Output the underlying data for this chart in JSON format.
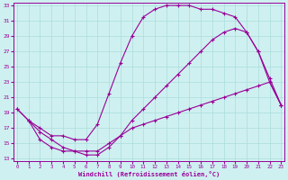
{
  "xlabel": "Windchill (Refroidissement éolien,°C)",
  "background_color": "#cff0f0",
  "line_color": "#990099",
  "grid_color": "#aadddd",
  "xlim": [
    0,
    23
  ],
  "ylim": [
    13,
    33
  ],
  "xticks": [
    0,
    1,
    2,
    3,
    4,
    5,
    6,
    7,
    8,
    9,
    10,
    11,
    12,
    13,
    14,
    15,
    16,
    17,
    18,
    19,
    20,
    21,
    22,
    23
  ],
  "yticks": [
    13,
    15,
    17,
    19,
    21,
    23,
    25,
    27,
    29,
    31,
    33
  ],
  "curve1_x": [
    0,
    1,
    2,
    3,
    4,
    5,
    6,
    7,
    8,
    9,
    10,
    11,
    12,
    13,
    14,
    15,
    16,
    17,
    18,
    19,
    20,
    21,
    22,
    23
  ],
  "curve1_y": [
    19.5,
    18.0,
    16.5,
    15.5,
    14.5,
    14.0,
    13.5,
    13.5,
    14.5,
    16.0,
    18.0,
    19.5,
    21.0,
    22.5,
    24.0,
    25.5,
    27.0,
    28.5,
    29.5,
    30.0,
    29.5,
    27.0,
    23.5,
    20.0
  ],
  "curve2_x": [
    0,
    1,
    2,
    3,
    4,
    5,
    6,
    7,
    8,
    9,
    10,
    11,
    12,
    13,
    14,
    15,
    16,
    17,
    18,
    19,
    20,
    21,
    22,
    23
  ],
  "curve2_y": [
    19.5,
    18.0,
    17.0,
    16.0,
    16.0,
    15.5,
    15.5,
    17.5,
    21.5,
    25.5,
    29.0,
    31.5,
    32.5,
    33.0,
    33.0,
    33.0,
    32.5,
    32.5,
    32.0,
    31.5,
    29.5,
    27.0,
    23.0,
    20.0
  ],
  "curve3_x": [
    1,
    2,
    3,
    4,
    5,
    6,
    7,
    8,
    9,
    10,
    11,
    12,
    13,
    14,
    15,
    16,
    17,
    18,
    19,
    20,
    21,
    22,
    23
  ],
  "curve3_y": [
    18.0,
    15.5,
    14.5,
    14.0,
    14.0,
    14.0,
    14.0,
    15.0,
    16.0,
    17.0,
    17.5,
    18.0,
    18.5,
    19.0,
    19.5,
    20.0,
    20.5,
    21.0,
    21.5,
    22.0,
    22.5,
    23.0,
    20.0
  ]
}
